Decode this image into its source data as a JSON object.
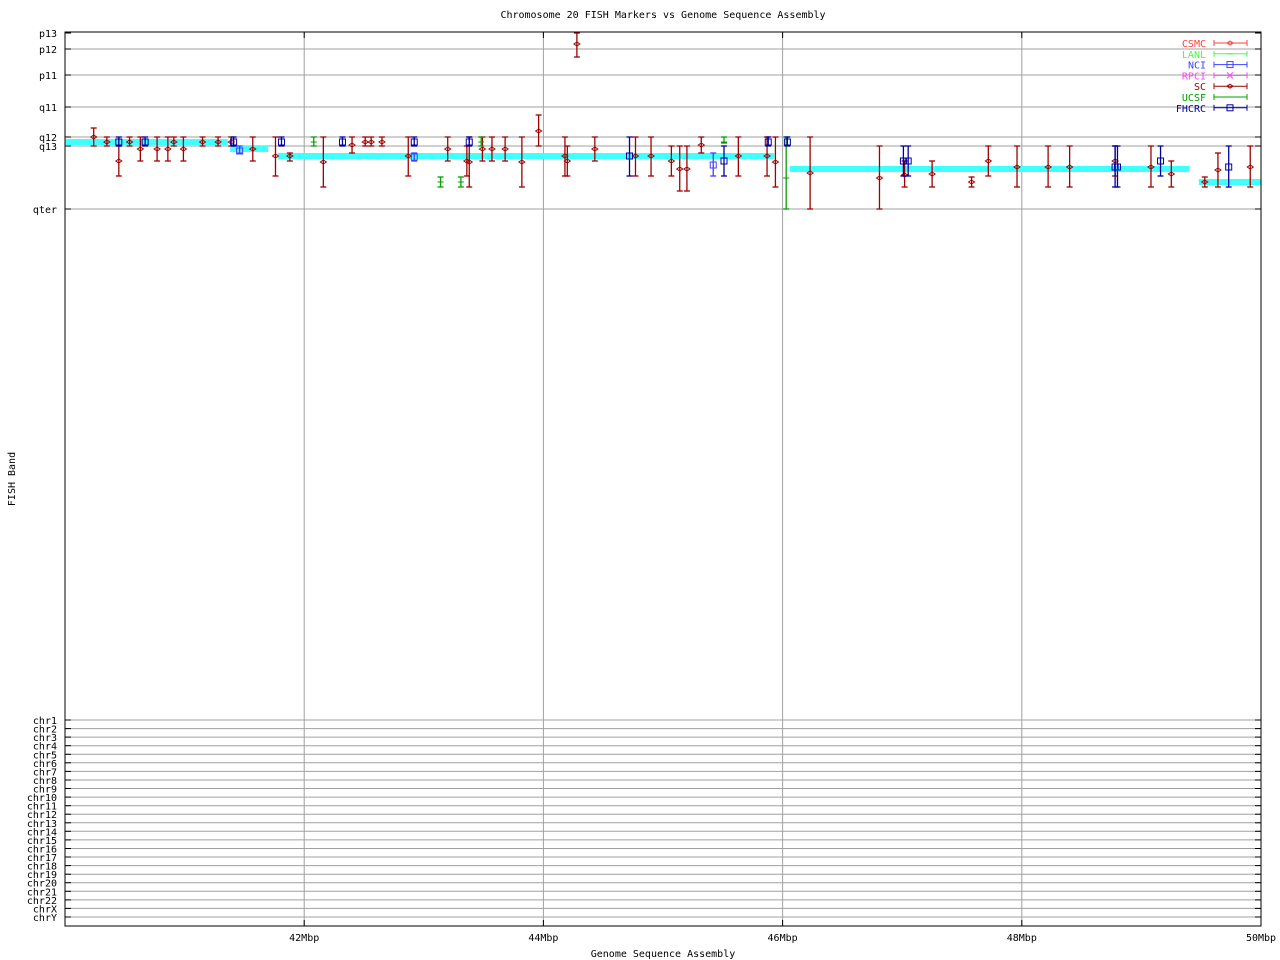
{
  "chart_data": {
    "type": "scatter",
    "title": "Chromosome 20 FISH Markers vs Genome Sequence Assembly",
    "xlabel": "Genome Sequence Assembly",
    "ylabel": "FISH Band",
    "xlim": [
      40,
      50
    ],
    "ylim": [
      -1,
      893
    ],
    "y_reversed": true,
    "grid": true,
    "legend_position": "top-right",
    "x_ticks": [
      {
        "value": 42,
        "label": "42Mbp"
      },
      {
        "value": 44,
        "label": "44Mbp"
      },
      {
        "value": 46,
        "label": "46Mbp"
      },
      {
        "value": 48,
        "label": "48Mbp"
      },
      {
        "value": 50,
        "label": "50Mbp"
      }
    ],
    "y_ticks": [
      {
        "value": 0,
        "label": "p13"
      },
      {
        "value": 16,
        "label": "p12"
      },
      {
        "value": 42,
        "label": "p11"
      },
      {
        "value": 74,
        "label": "q11"
      },
      {
        "value": 104,
        "label": "q12"
      },
      {
        "value": 113,
        "label": "q13"
      },
      {
        "value": 176,
        "label": "qter"
      },
      {
        "value": 687,
        "label": "chr1"
      },
      {
        "value": 695.6,
        "label": "chr2"
      },
      {
        "value": 704.1,
        "label": "chr3"
      },
      {
        "value": 712.7,
        "label": "chr4"
      },
      {
        "value": 721.3,
        "label": "chr5"
      },
      {
        "value": 729.8,
        "label": "chr6"
      },
      {
        "value": 738.4,
        "label": "chr7"
      },
      {
        "value": 747,
        "label": "chr8"
      },
      {
        "value": 755.5,
        "label": "chr9"
      },
      {
        "value": 764.1,
        "label": "chr10"
      },
      {
        "value": 772.7,
        "label": "chr11"
      },
      {
        "value": 781.2,
        "label": "chr12"
      },
      {
        "value": 789.8,
        "label": "chr13"
      },
      {
        "value": 798.3,
        "label": "chr14"
      },
      {
        "value": 806.9,
        "label": "chr15"
      },
      {
        "value": 815.5,
        "label": "chr16"
      },
      {
        "value": 824,
        "label": "chr17"
      },
      {
        "value": 832.6,
        "label": "chr18"
      },
      {
        "value": 841.2,
        "label": "chr19"
      },
      {
        "value": 849.7,
        "label": "chr20"
      },
      {
        "value": 858.3,
        "label": "chr21"
      },
      {
        "value": 866.9,
        "label": "chr22"
      },
      {
        "value": 875.4,
        "label": "chrX"
      },
      {
        "value": 884,
        "label": "chrY"
      }
    ],
    "assembly_segments": {
      "color": "#40ffff",
      "segments": [
        [
          40.0,
          41.36,
          109
        ],
        [
          41.38,
          41.7,
          116
        ],
        [
          41.78,
          45.93,
          123
        ],
        [
          46.06,
          49.4,
          136
        ],
        [
          49.48,
          50.0,
          149
        ]
      ]
    },
    "series": [
      {
        "name": "CSMC",
        "color": "#ff4040",
        "marker": "diamond",
        "points": []
      },
      {
        "name": "LANL",
        "color": "#40ff40",
        "marker": "tick",
        "points": []
      },
      {
        "name": "NCI",
        "color": "#4040ff",
        "marker": "square",
        "points": [
          [
            41.46,
            118,
            113,
            120
          ],
          [
            42.92,
            124,
            120,
            128
          ],
          [
            45.42,
            132,
            120,
            143
          ]
        ]
      },
      {
        "name": "RPCI",
        "color": "#ff40ff",
        "marker": "cross",
        "points": []
      },
      {
        "name": "SC",
        "color": "#a00000",
        "marker": "diamond",
        "points": [
          [
            40.24,
            104,
            95,
            113
          ],
          [
            40.35,
            109,
            104,
            113
          ],
          [
            40.45,
            128,
            113,
            143
          ],
          [
            40.54,
            109,
            104,
            113
          ],
          [
            40.63,
            116,
            104,
            128
          ],
          [
            40.77,
            116,
            104,
            128
          ],
          [
            40.86,
            116,
            104,
            128
          ],
          [
            40.91,
            109,
            104,
            113
          ],
          [
            40.99,
            116,
            104,
            128
          ],
          [
            41.15,
            109,
            104,
            113
          ],
          [
            41.28,
            109,
            104,
            113
          ],
          [
            41.39,
            109,
            104,
            113
          ],
          [
            41.57,
            116,
            104,
            128
          ],
          [
            41.76,
            123,
            104,
            143
          ],
          [
            41.88,
            123,
            120,
            128
          ],
          [
            42.16,
            129,
            104,
            154
          ],
          [
            42.4,
            112,
            104,
            120
          ],
          [
            42.51,
            109,
            104,
            113
          ],
          [
            42.56,
            109,
            104,
            113
          ],
          [
            42.65,
            109,
            104,
            113
          ],
          [
            42.87,
            123,
            104,
            143
          ],
          [
            43.2,
            116,
            104,
            128
          ],
          [
            43.36,
            128,
            113,
            143
          ],
          [
            43.38,
            129,
            104,
            154
          ],
          [
            43.49,
            116,
            104,
            128
          ],
          [
            43.57,
            116,
            104,
            128
          ],
          [
            43.68,
            116,
            104,
            128
          ],
          [
            43.82,
            129,
            104,
            154
          ],
          [
            43.96,
            98,
            82,
            113
          ],
          [
            44.28,
            11,
            0,
            24
          ],
          [
            44.18,
            123,
            104,
            143
          ],
          [
            44.2,
            128,
            113,
            143
          ],
          [
            44.43,
            116,
            104,
            128
          ],
          [
            44.77,
            123,
            104,
            143
          ],
          [
            44.9,
            123,
            104,
            143
          ],
          [
            45.07,
            128,
            113,
            143
          ],
          [
            45.14,
            136,
            113,
            158
          ],
          [
            45.2,
            136,
            113,
            158
          ],
          [
            45.32,
            112,
            104,
            120
          ],
          [
            45.63,
            123,
            104,
            143
          ],
          [
            45.87,
            123,
            104,
            143
          ],
          [
            45.94,
            129,
            104,
            154
          ],
          [
            46.23,
            140,
            104,
            176
          ],
          [
            46.81,
            145,
            113,
            176
          ],
          [
            47.02,
            142,
            128,
            154
          ],
          [
            47.25,
            141,
            128,
            154
          ],
          [
            47.58,
            149,
            144,
            154
          ],
          [
            47.72,
            128,
            113,
            143
          ],
          [
            47.96,
            134,
            113,
            154
          ],
          [
            48.22,
            134,
            113,
            154
          ],
          [
            48.4,
            134,
            113,
            154
          ],
          [
            48.78,
            128,
            113,
            143
          ],
          [
            49.08,
            134,
            113,
            154
          ],
          [
            49.25,
            141,
            128,
            154
          ],
          [
            49.53,
            149,
            144,
            154
          ],
          [
            49.64,
            137,
            120,
            154
          ],
          [
            49.91,
            134,
            113,
            154
          ]
        ]
      },
      {
        "name": "UCSF",
        "color": "#00a000",
        "marker": "tick",
        "points": [
          [
            42.08,
            109,
            104,
            113
          ],
          [
            43.14,
            149,
            144,
            154
          ],
          [
            43.31,
            149,
            144,
            154
          ],
          [
            43.48,
            109,
            104,
            113
          ],
          [
            45.51,
            109,
            104,
            110
          ],
          [
            46.03,
            145,
            104,
            176
          ]
        ]
      },
      {
        "name": "FHCRC",
        "color": "#0000a0",
        "marker": "square",
        "points": [
          [
            40.45,
            109,
            104,
            113
          ],
          [
            40.67,
            109,
            104,
            113
          ],
          [
            41.41,
            109,
            104,
            113
          ],
          [
            41.81,
            109,
            104,
            113
          ],
          [
            42.32,
            109,
            104,
            113
          ],
          [
            42.92,
            109,
            104,
            113
          ],
          [
            43.38,
            109,
            104,
            113
          ],
          [
            44.72,
            123,
            104,
            143
          ],
          [
            45.51,
            128,
            113,
            143
          ],
          [
            45.88,
            109,
            104,
            113
          ],
          [
            46.04,
            109,
            104,
            113
          ],
          [
            47.01,
            128,
            113,
            143
          ],
          [
            47.05,
            128,
            113,
            143
          ],
          [
            48.78,
            134,
            113,
            154
          ],
          [
            48.8,
            134,
            113,
            154
          ],
          [
            49.16,
            128,
            113,
            143
          ],
          [
            49.73,
            134,
            113,
            154
          ]
        ]
      }
    ]
  }
}
